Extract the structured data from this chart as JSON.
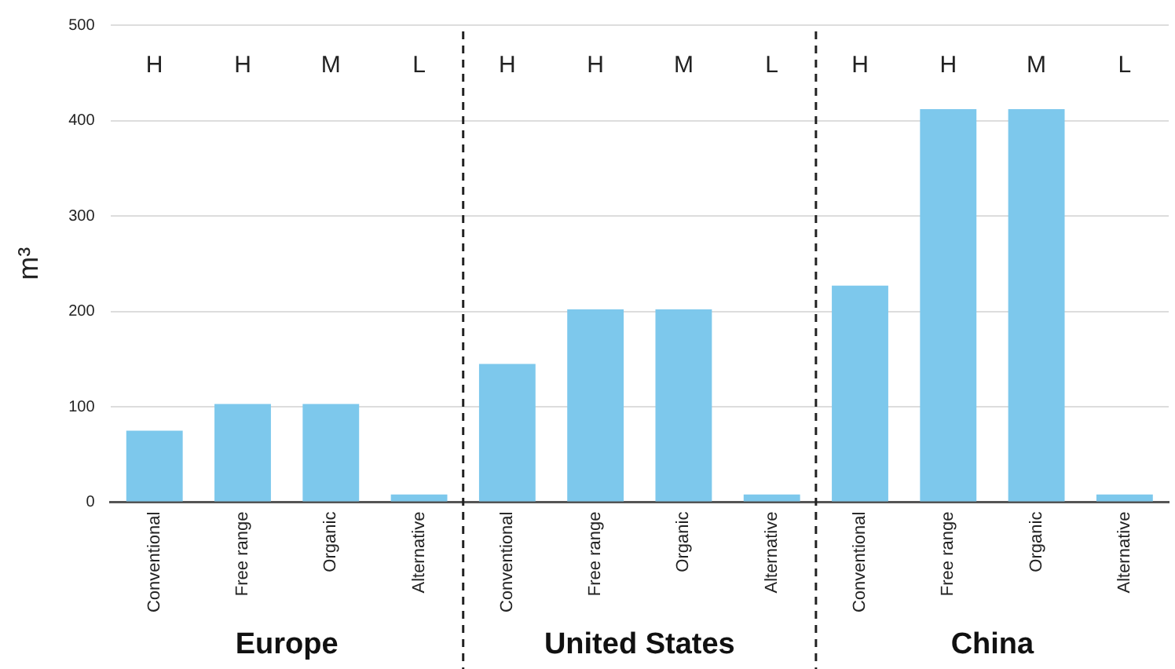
{
  "chart_data": {
    "type": "bar",
    "ylabel": "m³",
    "categories": [
      "Conventional",
      "Free range",
      "Organic",
      "Alternative",
      "Conventional",
      "Free range",
      "Organic",
      "Alternative",
      "Conventional",
      "Free range",
      "Organic",
      "Alternative"
    ],
    "values": [
      75,
      103,
      103,
      8,
      145,
      202,
      202,
      8,
      227,
      412,
      412,
      8
    ],
    "color": "#7dc8ec",
    "ylim": [
      0,
      500
    ],
    "yticks": [
      0,
      100,
      200,
      300,
      400,
      500
    ],
    "grid": "y",
    "annotations": [
      "H",
      "H",
      "M",
      "L",
      "H",
      "H",
      "M",
      "L",
      "H",
      "H",
      "M",
      "L",
      "Europe",
      "United States",
      "China"
    ]
  }
}
